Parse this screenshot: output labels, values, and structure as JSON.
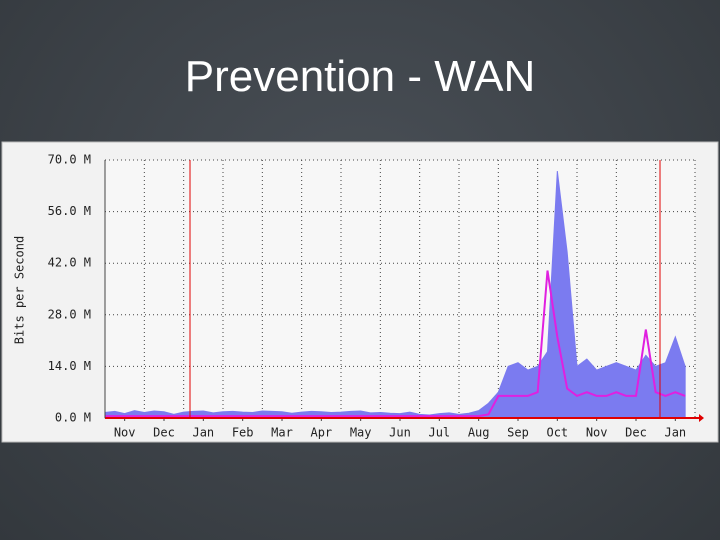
{
  "title": "Prevention - WAN",
  "chart_data": {
    "type": "area-line",
    "y_label": "Bits per Second",
    "xlim": [
      0,
      15
    ],
    "xticks": [
      {
        "value": 0.5,
        "label": "Nov"
      },
      {
        "value": 1.5,
        "label": "Dec"
      },
      {
        "value": 2.5,
        "label": "Jan"
      },
      {
        "value": 3.5,
        "label": "Feb"
      },
      {
        "value": 4.5,
        "label": "Mar"
      },
      {
        "value": 5.5,
        "label": "Apr"
      },
      {
        "value": 6.5,
        "label": "May"
      },
      {
        "value": 7.5,
        "label": "Jun"
      },
      {
        "value": 8.5,
        "label": "Jul"
      },
      {
        "value": 9.5,
        "label": "Aug"
      },
      {
        "value": 10.5,
        "label": "Sep"
      },
      {
        "value": 11.5,
        "label": "Oct"
      },
      {
        "value": 12.5,
        "label": "Nov"
      },
      {
        "value": 13.5,
        "label": "Dec"
      },
      {
        "value": 14.5,
        "label": "Jan"
      }
    ],
    "ylim": [
      0,
      70
    ],
    "yticks": [
      {
        "value": 0,
        "label": "0.0 M"
      },
      {
        "value": 14,
        "label": "14.0 M"
      },
      {
        "value": 28,
        "label": "28.0 M"
      },
      {
        "value": 42,
        "label": "42.0 M"
      },
      {
        "value": 56,
        "label": "56.0 M"
      },
      {
        "value": 70,
        "label": "70.0 M"
      }
    ],
    "grid": true,
    "x": [
      0,
      0.25,
      0.5,
      0.75,
      1,
      1.25,
      1.5,
      1.75,
      2,
      2.25,
      2.5,
      2.75,
      3,
      3.25,
      3.5,
      3.75,
      4,
      4.25,
      4.5,
      4.75,
      5,
      5.25,
      5.5,
      5.75,
      6,
      6.25,
      6.5,
      6.75,
      7,
      7.25,
      7.5,
      7.75,
      8,
      8.25,
      8.5,
      8.75,
      9,
      9.25,
      9.5,
      9.75,
      10,
      10.25,
      10.5,
      10.75,
      11,
      11.25,
      11.5,
      11.75,
      12,
      12.25,
      12.5,
      12.75,
      13,
      13.25,
      13.5,
      13.75,
      14,
      14.25,
      14.5,
      14.75
    ],
    "series": [
      {
        "color": "#7b7bf0",
        "style": "area",
        "values": [
          1.5,
          1.8,
          1.2,
          2,
          1.5,
          1.9,
          1.7,
          1.0,
          1.6,
          1.8,
          1.9,
          1.4,
          1.7,
          1.8,
          1.6,
          1.5,
          1.9,
          1.8,
          1.7,
          1.3,
          1.6,
          1.8,
          1.7,
          1.5,
          1.6,
          1.8,
          1.9,
          1.4,
          1.5,
          1.3,
          1.2,
          1.6,
          1.0,
          0.8,
          1.2,
          1.4,
          1.0,
          1.3,
          2.0,
          4.0,
          7,
          14,
          15,
          13,
          14,
          18,
          67,
          45,
          14,
          16,
          13,
          14,
          15,
          14,
          13,
          17,
          14,
          15,
          22,
          14
        ]
      },
      {
        "color": "#e020e0",
        "style": "line",
        "values": [
          0.5,
          0.5,
          0.5,
          0.5,
          0.5,
          0.5,
          0.5,
          0.5,
          0.5,
          0.5,
          0.5,
          0.5,
          0.5,
          0.5,
          0.5,
          0.5,
          0.5,
          0.5,
          0.5,
          0.5,
          0.5,
          0.5,
          0.5,
          0.5,
          0.5,
          0.5,
          0.5,
          0.5,
          0.5,
          0.5,
          0.5,
          0.5,
          0.5,
          0.5,
          0.5,
          0.5,
          0.5,
          0.5,
          0.5,
          1,
          6,
          6,
          6,
          6,
          7,
          40,
          22,
          8,
          6,
          7,
          6,
          6,
          7,
          6,
          6,
          24,
          7,
          6,
          7,
          6
        ]
      }
    ]
  }
}
